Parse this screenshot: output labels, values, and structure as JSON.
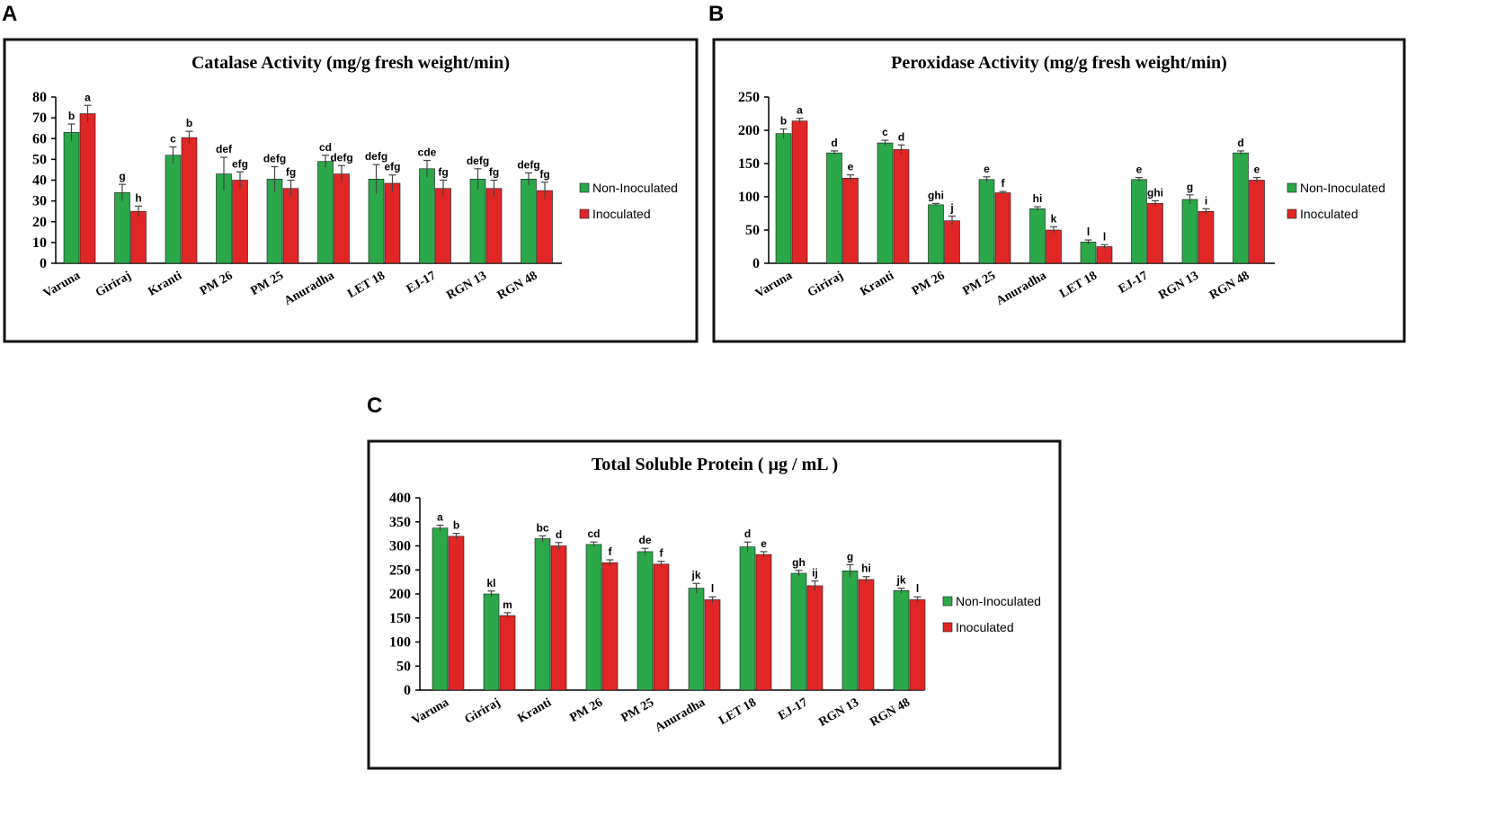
{
  "panels": [
    {
      "letter": "A"
    },
    {
      "letter": "B"
    },
    {
      "letter": "C"
    }
  ],
  "colors": {
    "non_inoculated": "#2BA84A",
    "inoculated": "#E12626"
  },
  "chart_data": [
    {
      "type": "bar",
      "title": "Catalase Activity (mg/g fresh weight/min)",
      "categories": [
        "Varuna",
        "Giriraj",
        "Kranti",
        "PM 26",
        "PM 25",
        "Anuradha",
        "LET 18",
        "EJ-17",
        "RGN 13",
        "RGN 48"
      ],
      "ylim": [
        0,
        80
      ],
      "yticks": [
        0,
        10,
        20,
        30,
        40,
        50,
        60,
        70,
        80
      ],
      "legend_position": "right",
      "series": [
        {
          "name": "Non-Inoculated",
          "values": [
            63,
            34,
            52,
            43,
            40.5,
            49,
            40.5,
            45.5,
            40.5,
            40.5
          ],
          "errors": [
            4,
            4,
            4,
            8,
            6,
            3,
            7,
            4,
            5,
            3
          ],
          "labels": [
            "b",
            "g",
            "c",
            "def",
            "defg",
            "cd",
            "defg",
            "cde",
            "defg",
            "defg"
          ]
        },
        {
          "name": "Inoculated",
          "values": [
            72,
            25,
            60.5,
            40,
            36,
            43,
            38.5,
            36,
            36,
            35
          ],
          "errors": [
            4,
            2.5,
            3,
            4,
            4,
            4,
            4,
            4,
            4,
            4
          ],
          "labels": [
            "a",
            "h",
            "b",
            "efg",
            "fg",
            "defg",
            "efg",
            "fg",
            "fg",
            "fg"
          ]
        }
      ]
    },
    {
      "type": "bar",
      "title": "Peroxidase Activity (mg/g fresh weight/min)",
      "categories": [
        "Varuna",
        "Giriraj",
        "Kranti",
        "PM 26",
        "PM 25",
        "Anuradha",
        "LET 18",
        "EJ-17",
        "RGN 13",
        "RGN 48"
      ],
      "ylim": [
        0,
        250
      ],
      "yticks": [
        0,
        50,
        100,
        150,
        200,
        250
      ],
      "legend_position": "right",
      "series": [
        {
          "name": "Non-Inoculated",
          "values": [
            195,
            166,
            181,
            88,
            126,
            82,
            32,
            126,
            96,
            166
          ],
          "errors": [
            7,
            3,
            4,
            2,
            4,
            3,
            3,
            3,
            7,
            3
          ],
          "labels": [
            "b",
            "d",
            "c",
            "ghi",
            "e",
            "hi",
            "l",
            "e",
            "g",
            "d"
          ]
        },
        {
          "name": "Inoculated",
          "values": [
            214,
            128,
            171,
            64,
            106,
            50,
            25,
            90,
            78,
            125
          ],
          "errors": [
            4,
            5,
            7,
            7,
            2,
            5,
            3,
            4,
            4,
            4
          ],
          "labels": [
            "a",
            "e",
            "d",
            "j",
            "f",
            "k",
            "l",
            "ghi",
            "i",
            "e"
          ]
        }
      ]
    },
    {
      "type": "bar",
      "title": "Total Soluble Protein ( µg / mL )",
      "categories": [
        "Varuna",
        "Giriraj",
        "Kranti",
        "PM 26",
        "PM 25",
        "Anuradha",
        "LET 18",
        "EJ-17",
        "RGN 13",
        "RGN 48"
      ],
      "ylim": [
        0,
        400
      ],
      "yticks": [
        0,
        50,
        100,
        150,
        200,
        250,
        300,
        350,
        400
      ],
      "legend_position": "right",
      "series": [
        {
          "name": "Non-Inoculated",
          "values": [
            337,
            200,
            315,
            303,
            288,
            212,
            298,
            243,
            248,
            207
          ],
          "errors": [
            6,
            6,
            6,
            5,
            7,
            10,
            10,
            6,
            13,
            5
          ],
          "labels": [
            "a",
            "kl",
            "bc",
            "cd",
            "de",
            "jk",
            "d",
            "gh",
            "g",
            "jk"
          ]
        },
        {
          "name": "Inoculated",
          "values": [
            320,
            155,
            300,
            265,
            262,
            188,
            282,
            217,
            230,
            188
          ],
          "errors": [
            6,
            6,
            7,
            6,
            6,
            6,
            6,
            10,
            6,
            6
          ],
          "labels": [
            "b",
            "m",
            "d",
            "f",
            "f",
            "l",
            "e",
            "ij",
            "hi",
            "l"
          ]
        }
      ]
    }
  ]
}
